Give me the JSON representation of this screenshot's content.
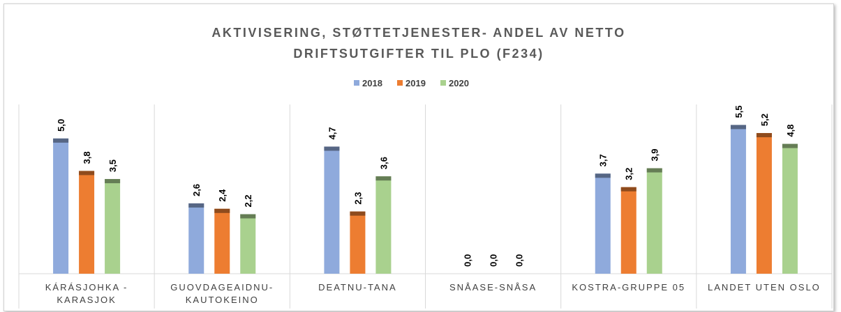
{
  "chart_data": {
    "type": "bar",
    "title": "AKTIVISERING, STØTTETJENESTER- ANDEL AV NETTO DRIFTSUTGIFTER TIL PLO (F234)",
    "categories": [
      "KÁRÁSJOHKA - KARASJOK",
      "GUOVDAGEAIDNU- KAUTOKEINO",
      "DEATNU-TANA",
      "SNÅASE-SNÅSA",
      "KOSTRA-GRUPPE 05",
      "LANDET UTEN OSLO"
    ],
    "series": [
      {
        "name": "2018",
        "color": "#8faadc",
        "values": [
          5.0,
          2.6,
          4.7,
          0.0,
          3.7,
          5.5
        ],
        "value_labels": [
          "5,0",
          "2,6",
          "4,7",
          "0,0",
          "3,7",
          "5,5"
        ]
      },
      {
        "name": "2019",
        "color": "#ed7d31",
        "values": [
          3.8,
          2.4,
          2.3,
          0.0,
          3.2,
          5.2
        ],
        "value_labels": [
          "3,8",
          "2,4",
          "2,3",
          "0,0",
          "3,2",
          "5,2"
        ]
      },
      {
        "name": "2020",
        "color": "#a9d18e",
        "values": [
          3.5,
          2.2,
          3.6,
          0.0,
          3.9,
          4.8
        ],
        "value_labels": [
          "3,5",
          "2,2",
          "3,6",
          "0,0",
          "3,9",
          "4,8"
        ]
      }
    ],
    "ylim": [
      0,
      6
    ],
    "legend": "top"
  }
}
